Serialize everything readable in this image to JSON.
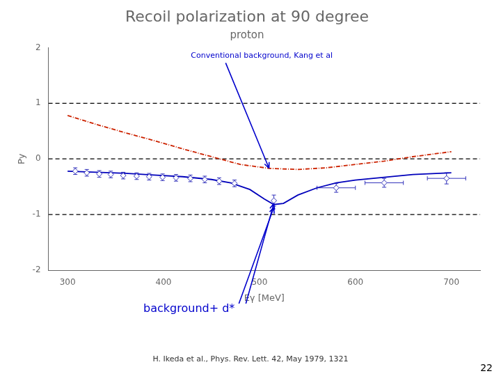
{
  "chart_data": {
    "type": "line",
    "title": "Recoil polarization at 90 degree",
    "subtitle": "proton",
    "xlabel": "Eγ [MeV]",
    "ylabel": "Py",
    "xlim": [
      280,
      730
    ],
    "ylim": [
      -2,
      2
    ],
    "xticks": [
      300,
      400,
      500,
      600,
      700
    ],
    "yticks": [
      -2,
      -1,
      0,
      1,
      2
    ],
    "grid": false,
    "reference_lines": {
      "values": [
        1,
        0,
        -1
      ],
      "line_style": "dashed"
    },
    "series": [
      {
        "type": "line",
        "color": "#cc2200",
        "line_style": "dashdot",
        "x": [
          300,
          330,
          360,
          390,
          420,
          450,
          480,
          510,
          540,
          570,
          600,
          630,
          660,
          700
        ],
        "values": [
          0.78,
          0.62,
          0.47,
          0.33,
          0.18,
          0.04,
          -0.1,
          -0.17,
          -0.19,
          -0.16,
          -0.1,
          -0.04,
          0.04,
          0.13
        ]
      },
      {
        "type": "line",
        "color": "#0000bb",
        "line_style": "solid",
        "x": [
          300,
          330,
          360,
          390,
          420,
          450,
          470,
          490,
          505,
          515,
          525,
          540,
          560,
          580,
          600,
          630,
          660,
          700
        ],
        "values": [
          -0.22,
          -0.24,
          -0.26,
          -0.29,
          -0.32,
          -0.37,
          -0.43,
          -0.55,
          -0.72,
          -0.82,
          -0.8,
          -0.65,
          -0.52,
          -0.43,
          -0.38,
          -0.33,
          -0.28,
          -0.25
        ]
      },
      {
        "type": "scatter",
        "color": "#3333bb",
        "marker": "diamond",
        "x": [
          308,
          320,
          333,
          345,
          358,
          372,
          385,
          399,
          413,
          428,
          443,
          458,
          474,
          515,
          580,
          630,
          695
        ],
        "values": [
          -0.22,
          -0.25,
          -0.27,
          -0.28,
          -0.3,
          -0.31,
          -0.32,
          -0.33,
          -0.34,
          -0.35,
          -0.37,
          -0.4,
          -0.44,
          -0.75,
          -0.52,
          -0.43,
          -0.35
        ],
        "x_err": [
          0,
          0,
          0,
          0,
          0,
          0,
          0,
          0,
          0,
          0,
          0,
          0,
          0,
          0,
          20,
          20,
          20
        ],
        "y_err": [
          0.06,
          0.06,
          0.06,
          0.06,
          0.06,
          0.06,
          0.06,
          0.06,
          0.06,
          0.06,
          0.06,
          0.06,
          0.06,
          0.1,
          0.08,
          0.08,
          0.1
        ]
      }
    ],
    "annotations": [
      {
        "text": "Conventional background, Kang et al",
        "color": "#0000cc"
      },
      {
        "text": "background+ d*",
        "color": "#0000cc"
      }
    ],
    "source": "H. Ikeda et al., Phys. Rev. Lett. 42, May 1979, 1321",
    "page_number": "22"
  }
}
